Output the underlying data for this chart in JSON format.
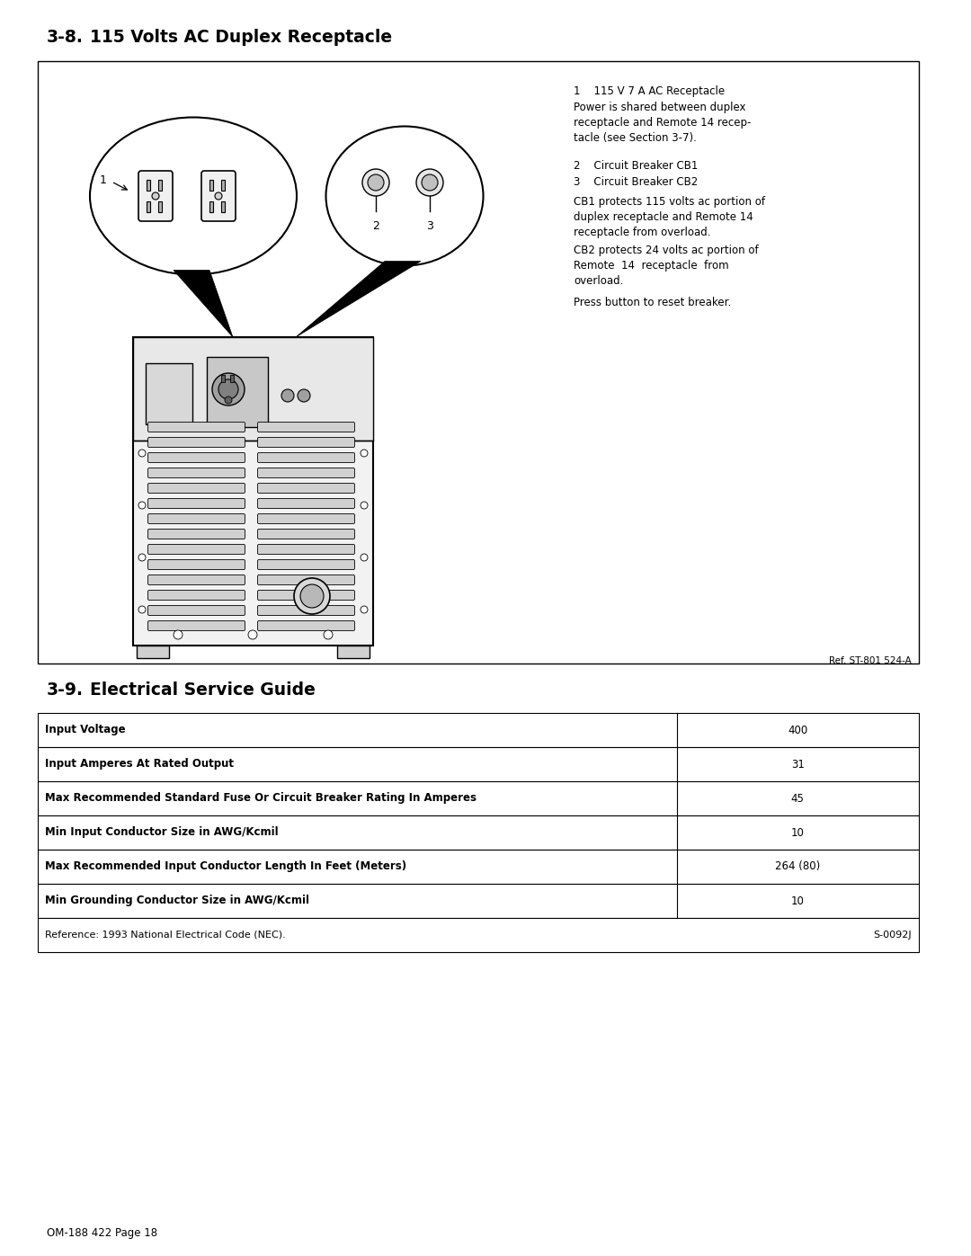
{
  "page_title_section": "3-8.",
  "page_title_text": "115 Volts AC Duplex Receptacle",
  "section2_title_section": "3-9.",
  "section2_title_text": "Electrical Service Guide",
  "ref_text": "Ref. ST-801 524-A",
  "annotation_1_label": "115 V 7 A AC Receptacle",
  "annotation_1_body": "Power is shared between duplex\nreceptacle and Remote 14 recep-\ntacle (see Section 3-7).",
  "annotation_2_label": "Circuit Breaker CB1",
  "annotation_3_label": "Circuit Breaker CB2",
  "annotation_cb1_body": "CB1 protects 115 volts ac portion of\nduplex receptacle and Remote 14\nreceptacle from overload.",
  "annotation_cb2_body": "CB2 protects 24 volts ac portion of\nRemote  14  receptacle  from\noverload.",
  "annotation_press": "Press button to reset breaker.",
  "table_rows": [
    {
      "label": "Input Voltage",
      "value": "400",
      "bold_label": true
    },
    {
      "label": "Input Amperes At Rated Output",
      "value": "31",
      "bold_label": true
    },
    {
      "label": "Max Recommended Standard Fuse Or Circuit Breaker Rating In Amperes",
      "value": "45",
      "bold_label": true
    },
    {
      "label": "Min Input Conductor Size in AWG/Kcmil",
      "value": "10",
      "bold_label": true
    },
    {
      "label": "Max Recommended Input Conductor Length In Feet (Meters)",
      "value": "264 (80)",
      "bold_label": true
    },
    {
      "label": "Min Grounding Conductor Size in AWG/Kcmil",
      "value": "10",
      "bold_label": true
    }
  ],
  "table_footer_left": "Reference: 1993 National Electrical Code (NEC).",
  "table_footer_right": "S-0092J",
  "footer_text": "OM-188 422 Page 18",
  "bg_color": "#ffffff",
  "text_color": "#000000"
}
